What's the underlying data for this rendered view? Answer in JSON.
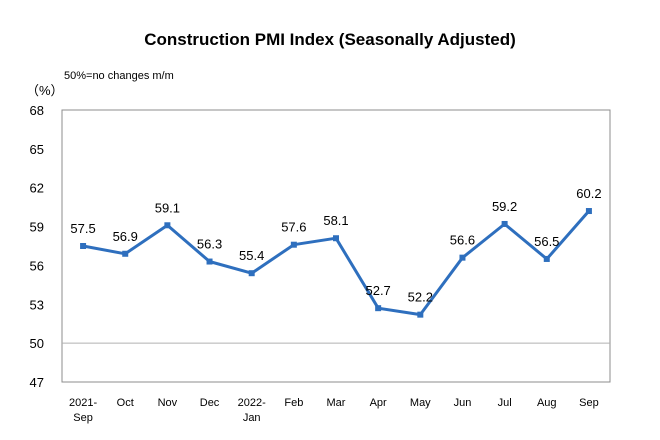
{
  "chart_data": {
    "type": "line",
    "title": "Construction PMI Index (Seasonally Adjusted)",
    "unit_label": "（%）",
    "note": "50%=no changes m/m",
    "categories": [
      [
        "2021-",
        "Sep"
      ],
      [
        "Oct"
      ],
      [
        "Nov"
      ],
      [
        "Dec"
      ],
      [
        "2022-",
        "Jan"
      ],
      [
        "Feb"
      ],
      [
        "Mar"
      ],
      [
        "Apr"
      ],
      [
        "May"
      ],
      [
        "Jun"
      ],
      [
        "Jul"
      ],
      [
        "Aug"
      ],
      [
        "Sep"
      ]
    ],
    "values": [
      57.5,
      56.9,
      59.1,
      56.3,
      55.4,
      57.6,
      58.1,
      52.7,
      52.2,
      56.6,
      59.2,
      56.5,
      60.2
    ],
    "value_labels": [
      "57.5",
      "56.9",
      "59.1",
      "56.3",
      "55.4",
      "57.6",
      "58.1",
      "52.7",
      "52.2",
      "56.6",
      "59.2",
      "56.5",
      "60.2"
    ],
    "ylim": [
      47,
      68
    ],
    "yticks": [
      47,
      50,
      53,
      56,
      59,
      62,
      65,
      68
    ],
    "reference_line": 50,
    "grid": false,
    "line_color": "#2e6fbe",
    "reference_color": "#b0b0b0"
  }
}
